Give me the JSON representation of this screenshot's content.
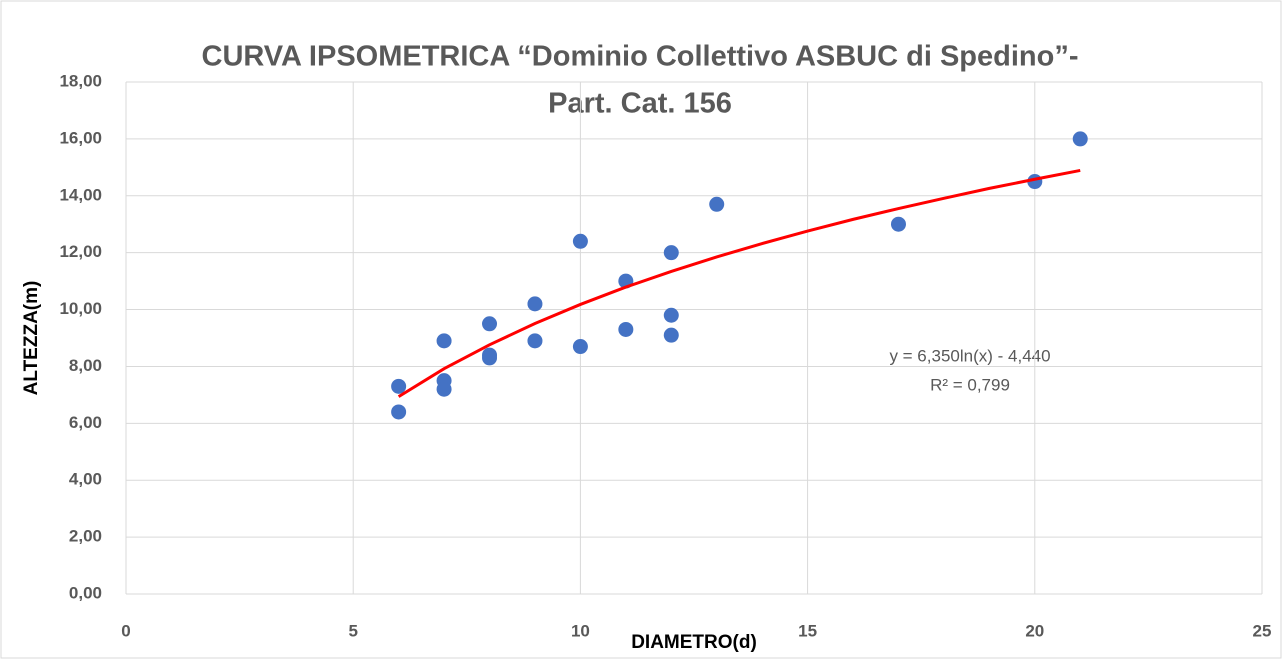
{
  "chart_data": {
    "type": "scatter",
    "title": [
      "CURVA IPSOMETRICA “Dominio Collettivo ASBUC di Spedino”-",
      "Part. Cat. 156"
    ],
    "xlabel": "DIAMETRO(d)",
    "ylabel": "ALTEZZA(m)",
    "annotations": [
      "y = 6,350ln(x) - 4,440",
      "R² = 0,799"
    ],
    "xlim": [
      0,
      25
    ],
    "xticks": [
      0,
      5,
      10,
      15,
      20,
      25
    ],
    "ylim": [
      0,
      18
    ],
    "yticks": [
      {
        "value": 0,
        "label": "0,00"
      },
      {
        "value": 2,
        "label": "2,00"
      },
      {
        "value": 4,
        "label": "4,00"
      },
      {
        "value": 6,
        "label": "6,00"
      },
      {
        "value": 8,
        "label": "8,00"
      },
      {
        "value": 10,
        "label": "10,00"
      },
      {
        "value": 12,
        "label": "12,00"
      },
      {
        "value": 14,
        "label": "14,00"
      },
      {
        "value": 16,
        "label": "16,00"
      },
      {
        "value": 18,
        "label": "18,00"
      }
    ],
    "grid": true,
    "series": [
      {
        "color": "#4472c4",
        "x": [
          6,
          6,
          7,
          7,
          7,
          8,
          8,
          8,
          9,
          9,
          10,
          10,
          11,
          11,
          12,
          12,
          12,
          13,
          17,
          20,
          21
        ],
        "values": [
          7.3,
          6.4,
          8.9,
          7.5,
          7.2,
          9.5,
          8.4,
          8.3,
          10.2,
          8.9,
          12.4,
          8.7,
          11,
          9.3,
          12,
          9.8,
          9.1,
          13.7,
          13,
          14.5,
          16
        ]
      },
      {
        "color": "#ff0000",
        "kind": "trendline",
        "x": [
          6,
          7,
          8,
          9,
          10,
          11,
          12,
          13,
          14,
          15,
          16,
          17,
          18,
          19,
          20,
          21
        ],
        "values": [
          6.94,
          7.92,
          8.76,
          9.51,
          10.18,
          10.79,
          11.34,
          11.85,
          12.32,
          12.76,
          13.17,
          13.55,
          13.91,
          14.26,
          14.58,
          14.89
        ]
      }
    ]
  }
}
